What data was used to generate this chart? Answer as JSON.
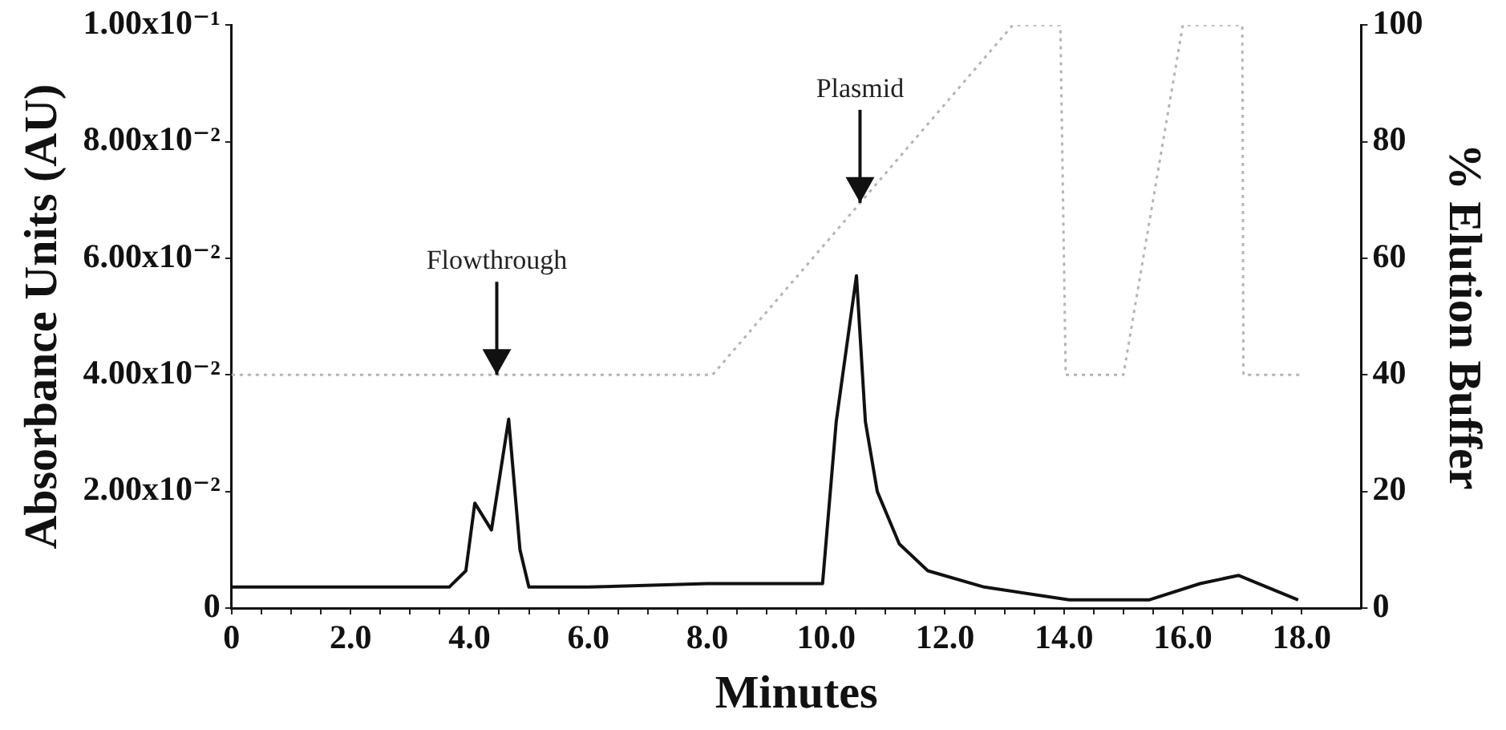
{
  "chart_data": {
    "type": "line",
    "xlabel": "Minutes",
    "ylabel": "Absorbance Units (AU)",
    "y2label": "% Elution Buffer",
    "xlim": [
      0,
      19
    ],
    "xticks": [
      0,
      {
        "value": 0.5,
        "label": null
      },
      {
        "value": 1,
        "label": null
      },
      {
        "value": 1.5,
        "label": null
      },
      {
        "value": 2,
        "label": "2.0"
      },
      {
        "value": 2.5,
        "label": null
      },
      {
        "value": 3,
        "label": null
      },
      {
        "value": 3.5,
        "label": null
      },
      {
        "value": 4,
        "label": "4.0"
      },
      {
        "value": 4.5,
        "label": null
      },
      {
        "value": 5,
        "label": null
      },
      {
        "value": 5.5,
        "label": null
      },
      {
        "value": 6,
        "label": "6.0"
      },
      {
        "value": 6.5,
        "label": null
      },
      {
        "value": 7,
        "label": null
      },
      {
        "value": 7.5,
        "label": null
      },
      {
        "value": 8,
        "label": "8.0"
      },
      {
        "value": 8.5,
        "label": null
      },
      {
        "value": 9,
        "label": null
      },
      {
        "value": 9.5,
        "label": null
      },
      {
        "value": 10,
        "label": "10.0"
      },
      {
        "value": 10.5,
        "label": null
      },
      {
        "value": 11,
        "label": null
      },
      {
        "value": 11.5,
        "label": null
      },
      {
        "value": 12,
        "label": "12.0"
      },
      {
        "value": 12.5,
        "label": null
      },
      {
        "value": 13,
        "label": null
      },
      {
        "value": 13.5,
        "label": null
      },
      {
        "value": 14,
        "label": "14.0"
      },
      {
        "value": 14.5,
        "label": null
      },
      {
        "value": 15,
        "label": null
      },
      {
        "value": 15.5,
        "label": null
      },
      {
        "value": 16,
        "label": "16.0"
      },
      {
        "value": 16.5,
        "label": null
      },
      {
        "value": 17,
        "label": null
      },
      {
        "value": 17.5,
        "label": null
      },
      {
        "value": 18,
        "label": "18.0"
      }
    ],
    "ylim": [
      0,
      0.1
    ],
    "yticks": [
      0,
      {
        "value": 0.02,
        "label": "2.00x10⁻²"
      },
      {
        "value": 0.04,
        "label": "4.00x10⁻²"
      },
      {
        "value": 0.06,
        "label": "6.00x10⁻²"
      },
      {
        "value": 0.08,
        "label": "8.00x10⁻²"
      },
      {
        "value": 0.1,
        "label": "1.00x10⁻¹"
      }
    ],
    "y2lim": [
      0,
      100
    ],
    "y2ticks": [
      0,
      20,
      40,
      60,
      80,
      100
    ],
    "grid": false,
    "legend": false,
    "marker": "none",
    "series": [
      {
        "color": "#111111",
        "line_style": "solid",
        "x": [
          0,
          3.66,
          3.94,
          4.09,
          4.37,
          4.66,
          4.85,
          5.0,
          6.0,
          8.0,
          9.94,
          10.17,
          10.51,
          10.66,
          10.86,
          11.23,
          11.71,
          12.66,
          14.09,
          15.43,
          16.29,
          16.94,
          17.94
        ],
        "values": [
          0.0036,
          0.0036,
          0.0064,
          0.018,
          0.0134,
          0.0324,
          0.01,
          0.0036,
          0.0036,
          0.0042,
          0.0042,
          0.032,
          0.057,
          0.032,
          0.02,
          0.011,
          0.0064,
          0.0036,
          0.0014,
          0.0014,
          0.0042,
          0.0056,
          0.0014
        ]
      },
      {
        "color": "#b5b5b5",
        "line_style": "dotted",
        "axis": "y2",
        "x": [
          0,
          8.09,
          13.14,
          13.94,
          14.03,
          15.0,
          16.0,
          17.0,
          17.02,
          18.03
        ],
        "values": [
          40,
          40,
          100,
          100,
          40,
          40,
          100,
          100,
          40,
          40
        ]
      }
    ],
    "annotations": [
      {
        "text": "Flowthrough",
        "x": 4.46,
        "y": 0.04
      },
      {
        "text": "Plasmid",
        "x": 10.57,
        "y": 0.0695
      }
    ]
  }
}
